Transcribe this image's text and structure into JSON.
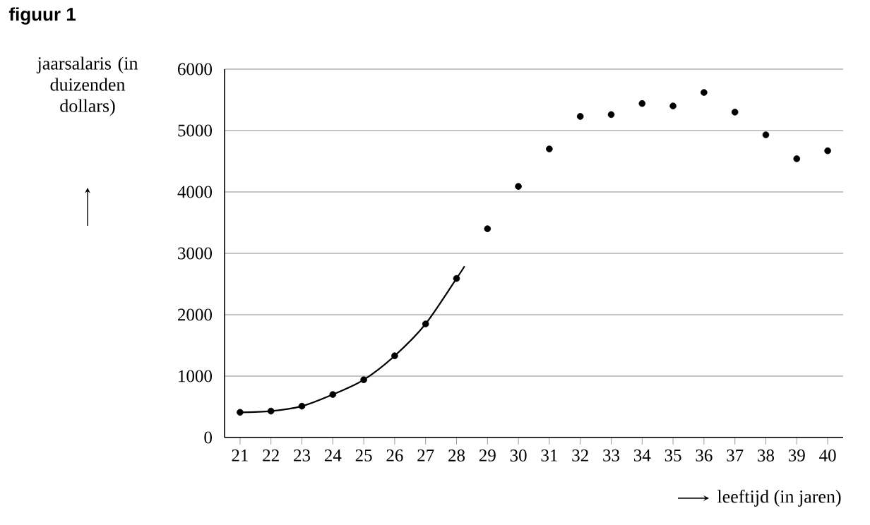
{
  "chart_data": {
    "type": "scatter",
    "title": "figuur 1",
    "ylabel": "jaarsalaris (in duizenden dollars)",
    "xlabel": "leeftijd (in jaren)",
    "xlim": [
      20.5,
      40.5
    ],
    "xticks": [
      21,
      22,
      23,
      24,
      25,
      26,
      27,
      28,
      29,
      30,
      31,
      32,
      33,
      34,
      35,
      36,
      37,
      38,
      39,
      40
    ],
    "ylim": [
      0,
      6000
    ],
    "yticks": [
      0,
      1000,
      2000,
      3000,
      4000,
      5000,
      6000
    ],
    "grid": "y",
    "series": [
      {
        "color": "#000000",
        "marker": "circle",
        "x": [
          21,
          22,
          23,
          24,
          25,
          26,
          27,
          28,
          29,
          30,
          31,
          32,
          33,
          34,
          35,
          36,
          37,
          38,
          39,
          40
        ],
        "values": [
          410,
          430,
          510,
          700,
          940,
          1330,
          1850,
          2590,
          3400,
          4090,
          4700,
          5230,
          5260,
          5440,
          5400,
          5620,
          5300,
          4930,
          4540,
          4670
        ]
      },
      {
        "type": "line",
        "color": "#000000",
        "marker": "none",
        "x": [
          21,
          22,
          23,
          24,
          25,
          26,
          27,
          28,
          28.26
        ],
        "values": [
          410,
          430,
          510,
          700,
          940,
          1330,
          1850,
          2590,
          2790
        ]
      }
    ]
  }
}
